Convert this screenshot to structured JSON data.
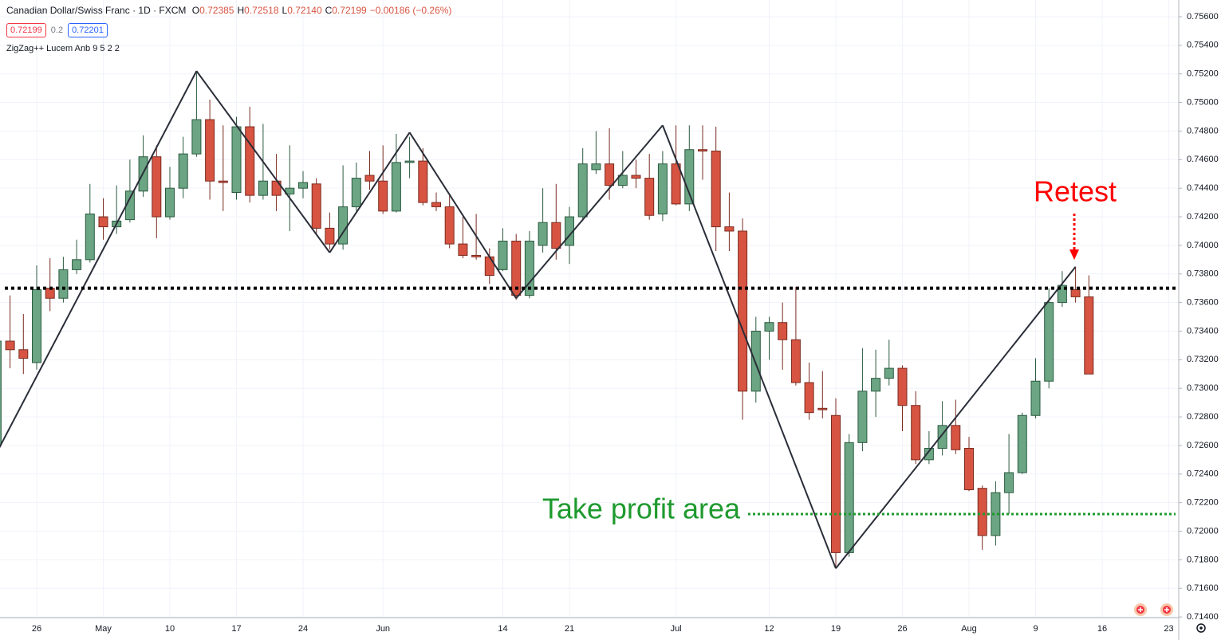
{
  "chart_data": {
    "type": "candlestick",
    "title": "Canadian Dollar/Swiss Franc · 1D · FXCM",
    "ohlc_header": [
      {
        "key": "O",
        "value": "0.72385"
      },
      {
        "key": "H",
        "value": "0.72518"
      },
      {
        "key": "L",
        "value": "0.72140"
      },
      {
        "key": "C",
        "value": "0.72199"
      }
    ],
    "change": "−0.00186 (−0.26%)",
    "price_boxes": [
      {
        "text": "0.72199",
        "color": "#f23645"
      },
      {
        "text": "0.2",
        "color": "#787b86"
      },
      {
        "text": "0.72201",
        "color": "#2962ff"
      }
    ],
    "up_color": "#6ba583",
    "down_color": "#d75442",
    "categories": [
      null,
      null,
      null,
      "26",
      null,
      null,
      null,
      null,
      "May",
      null,
      null,
      null,
      null,
      "10",
      null,
      null,
      null,
      null,
      "17",
      null,
      null,
      null,
      null,
      "24",
      null,
      null,
      null,
      null,
      null,
      "Jun",
      null,
      null,
      null,
      null,
      null,
      null,
      null,
      null,
      "14",
      null,
      null,
      null,
      null,
      "21",
      null,
      null,
      null,
      null,
      null,
      null,
      null,
      "Jul",
      null,
      null,
      null,
      null,
      null,
      null,
      "12",
      null,
      null,
      null,
      null,
      "19",
      null,
      null,
      null,
      null,
      "26",
      null,
      null,
      null,
      null,
      "Aug",
      null,
      null,
      null,
      null,
      "9",
      null,
      null,
      null,
      null,
      "16",
      null,
      null,
      null,
      null,
      "23"
    ],
    "open": [
      0.726,
      0.7333,
      0.7327,
      0.7318,
      0.737,
      0.7363,
      0.7383,
      0.739,
      0.742,
      0.7413,
      0.7418,
      0.7438,
      0.7462,
      0.742,
      0.744,
      0.7464,
      0.7488,
      0.7445,
      0.7437,
      0.7483,
      0.7435,
      0.7445,
      0.7436,
      0.744,
      0.7443,
      0.7412,
      0.7401,
      0.7427,
      0.7449,
      0.7445,
      0.7424,
      0.7458,
      0.7459,
      0.743,
      0.7427,
      0.7401,
      0.7393,
      0.7392,
      0.7383,
      0.7403,
      0.7365,
      0.74,
      0.7416,
      0.74,
      0.742,
      0.7453,
      0.7457,
      0.7442,
      0.7449,
      0.7447,
      0.7422,
      0.7457,
      0.7429,
      0.7467,
      0.7466,
      0.7413,
      0.741,
      0.7298,
      0.734,
      0.7346,
      0.7334,
      0.7304,
      0.7286,
      0.7281,
      0.7185,
      0.7262,
      0.7298,
      0.7307,
      0.7314,
      0.7288,
      0.725,
      0.7258,
      0.7274,
      0.7258,
      0.723,
      0.7197,
      0.7227,
      0.7241,
      0.7281,
      0.7305,
      0.736,
      0.7369,
      0.7364,
      null,
      null,
      null,
      null,
      null,
      null
    ],
    "high": [
      0.734,
      0.7365,
      0.7352,
      0.7386,
      0.7391,
      0.7392,
      0.7404,
      0.7443,
      0.7433,
      0.7442,
      0.746,
      0.7477,
      0.747,
      0.7455,
      0.7476,
      0.7522,
      0.7502,
      0.7484,
      0.749,
      0.7497,
      0.7485,
      0.7464,
      0.747,
      0.7452,
      0.7447,
      0.7423,
      0.7456,
      0.7458,
      0.7466,
      0.747,
      0.7478,
      0.7476,
      0.7468,
      0.7437,
      0.7436,
      0.742,
      0.7422,
      0.7398,
      0.7412,
      0.7408,
      0.741,
      0.744,
      0.7443,
      0.7427,
      0.7468,
      0.748,
      0.7482,
      0.7466,
      0.746,
      0.7464,
      0.7466,
      0.7484,
      0.7484,
      0.7484,
      0.7483,
      0.7437,
      0.7419,
      0.735,
      0.735,
      0.736,
      0.7371,
      0.7318,
      0.7312,
      0.7293,
      0.7268,
      0.7328,
      0.7327,
      0.7334,
      0.7316,
      0.7298,
      0.727,
      0.7291,
      0.7292,
      0.7266,
      0.7232,
      0.7235,
      0.7268,
      0.7283,
      0.7321,
      0.737,
      0.7382,
      0.7385,
      0.7379,
      null,
      null,
      null,
      null,
      null,
      null
    ],
    "low": [
      0.7255,
      0.7314,
      0.731,
      0.7313,
      0.7354,
      0.736,
      0.738,
      0.7388,
      0.7404,
      0.7408,
      0.7416,
      0.7434,
      0.7405,
      0.7418,
      0.7433,
      0.7462,
      0.7432,
      0.7424,
      0.7432,
      0.743,
      0.7432,
      0.7424,
      0.741,
      0.7433,
      0.7408,
      0.7397,
      0.7397,
      0.7424,
      0.7439,
      0.7422,
      0.7423,
      0.7447,
      0.7428,
      0.7424,
      0.7398,
      0.7391,
      0.739,
      0.7373,
      0.7382,
      0.7362,
      0.7363,
      0.7395,
      0.739,
      0.7387,
      0.7417,
      0.745,
      0.7432,
      0.744,
      0.744,
      0.7418,
      0.7417,
      0.7428,
      0.7424,
      0.7446,
      0.7396,
      0.7396,
      0.7278,
      0.729,
      0.732,
      0.7313,
      0.7302,
      0.7278,
      0.7279,
      0.7174,
      0.7182,
      0.7256,
      0.728,
      0.7302,
      0.727,
      0.7247,
      0.7247,
      0.7253,
      0.7254,
      0.7228,
      0.7187,
      0.719,
      0.7212,
      0.724,
      0.7279,
      0.73,
      0.7357,
      0.736,
      0.731,
      null,
      null,
      null,
      null,
      null,
      null
    ],
    "close": [
      0.7333,
      0.7327,
      0.7321,
      0.7369,
      0.7363,
      0.7383,
      0.739,
      0.7422,
      0.7413,
      0.7417,
      0.7438,
      0.7462,
      0.742,
      0.744,
      0.7464,
      0.7488,
      0.7445,
      0.7444,
      0.7483,
      0.7435,
      0.7445,
      0.7435,
      0.744,
      0.7444,
      0.7412,
      0.7401,
      0.7427,
      0.7447,
      0.7445,
      0.7424,
      0.7458,
      0.7459,
      0.743,
      0.7427,
      0.7401,
      0.7393,
      0.7392,
      0.7379,
      0.7403,
      0.7365,
      0.7403,
      0.7416,
      0.7398,
      0.742,
      0.7457,
      0.7457,
      0.7442,
      0.7449,
      0.7447,
      0.7421,
      0.7457,
      0.7429,
      0.7467,
      0.7466,
      0.7413,
      0.741,
      0.7298,
      0.734,
      0.7346,
      0.7334,
      0.7304,
      0.7283,
      0.7285,
      0.7185,
      0.7262,
      0.7298,
      0.7307,
      0.7314,
      0.7288,
      0.725,
      0.7258,
      0.7274,
      0.7257,
      0.7229,
      0.7197,
      0.7227,
      0.7241,
      0.7281,
      0.7305,
      0.736,
      0.7372,
      0.7364,
      0.731,
      null,
      null,
      null,
      null,
      null,
      null
    ],
    "zigzag": {
      "name": "ZigZag++ Lucem Anb 9 5 2 2",
      "color": "#2a2e39",
      "values": [
        0.7255,
        null,
        null,
        null,
        null,
        null,
        null,
        null,
        null,
        null,
        null,
        null,
        null,
        null,
        null,
        0.7522,
        null,
        null,
        null,
        null,
        null,
        null,
        null,
        null,
        null,
        0.7395,
        null,
        null,
        null,
        null,
        null,
        0.7479,
        null,
        null,
        null,
        null,
        null,
        null,
        null,
        0.7363,
        null,
        null,
        null,
        null,
        null,
        null,
        null,
        null,
        null,
        null,
        0.7484,
        null,
        null,
        null,
        null,
        null,
        null,
        null,
        null,
        null,
        null,
        null,
        null,
        0.7174,
        null,
        null,
        null,
        null,
        null,
        null,
        null,
        null,
        null,
        null,
        null,
        null,
        null,
        null,
        null,
        null,
        null,
        0.7385,
        null,
        null,
        null,
        null,
        null,
        null,
        null
      ]
    },
    "levels": [
      {
        "value": 0.737,
        "color": "#000000"
      },
      {
        "value": 0.7212,
        "color": "#1e9a2e",
        "label": "Take profit area"
      }
    ],
    "annotations": [
      {
        "text": "Retest",
        "color": "#ff0000"
      }
    ],
    "ylim": [
      0.71395,
      0.75717
    ],
    "yticks": [
      {
        "value": 0.714,
        "label": "0.71400"
      },
      {
        "value": 0.716,
        "label": "0.71600"
      },
      {
        "value": 0.718,
        "label": "0.71800"
      },
      {
        "value": 0.72,
        "label": "0.72000"
      },
      {
        "value": 0.722,
        "label": "0.72200"
      },
      {
        "value": 0.724,
        "label": "0.72400"
      },
      {
        "value": 0.726,
        "label": "0.72600"
      },
      {
        "value": 0.728,
        "label": "0.72800"
      },
      {
        "value": 0.73,
        "label": "0.73000"
      },
      {
        "value": 0.732,
        "label": "0.73200"
      },
      {
        "value": 0.734,
        "label": "0.73400"
      },
      {
        "value": 0.736,
        "label": "0.73600"
      },
      {
        "value": 0.738,
        "label": "0.73800"
      },
      {
        "value": 0.74,
        "label": "0.74000"
      },
      {
        "value": 0.742,
        "label": "0.74200"
      },
      {
        "value": 0.744,
        "label": "0.74400"
      },
      {
        "value": 0.746,
        "label": "0.74600"
      },
      {
        "value": 0.748,
        "label": "0.74800"
      },
      {
        "value": 0.75,
        "label": "0.75000"
      },
      {
        "value": 0.752,
        "label": "0.75200"
      },
      {
        "value": 0.754,
        "label": "0.75400"
      },
      {
        "value": 0.756,
        "label": "0.75600"
      }
    ],
    "grid": true
  }
}
